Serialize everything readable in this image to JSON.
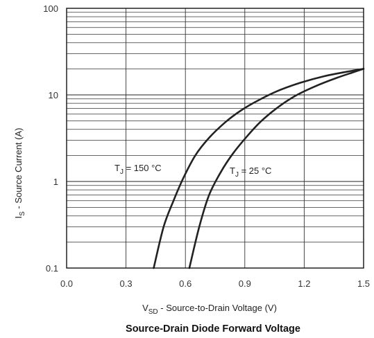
{
  "chart_data": {
    "type": "line",
    "title": "Source-Drain Diode Forward Voltage",
    "xlabel": {
      "main": "V",
      "sub": "SD",
      "rest": " - Source-to-Drain Voltage (V)"
    },
    "ylabel": {
      "main": "I",
      "sub": "S",
      "rest": " - Source Current (A)"
    },
    "xlim": [
      0.0,
      1.5
    ],
    "ylim": [
      0.1,
      100
    ],
    "y_scale": "log",
    "grid": true,
    "x_ticks": [
      "0.0",
      "0.3",
      "0.6",
      "0.9",
      "1.2",
      "1.5"
    ],
    "y_ticks": [
      "0.1",
      "1",
      "10",
      "100"
    ],
    "series": [
      {
        "label": {
          "pre": "T",
          "sub": "J",
          "post": " = 150 °C"
        },
        "x": [
          0.44,
          0.49,
          0.54,
          0.59,
          0.65,
          0.72,
          0.8,
          0.88,
          0.97,
          1.07,
          1.18,
          1.3,
          1.42,
          1.5
        ],
        "y": [
          0.1,
          0.3,
          0.6,
          1.1,
          2.0,
          3.2,
          4.8,
          6.6,
          8.7,
          11.2,
          13.8,
          16.4,
          18.6,
          20.0
        ]
      },
      {
        "label": {
          "pre": "T",
          "sub": "J",
          "post": " = 25 °C"
        },
        "x": [
          0.62,
          0.67,
          0.72,
          0.78,
          0.84,
          0.91,
          0.98,
          1.06,
          1.15,
          1.25,
          1.36,
          1.44,
          1.5
        ],
        "y": [
          0.1,
          0.3,
          0.7,
          1.3,
          2.1,
          3.3,
          4.9,
          7.0,
          9.6,
          12.4,
          15.6,
          18.0,
          20.0
        ]
      }
    ]
  }
}
